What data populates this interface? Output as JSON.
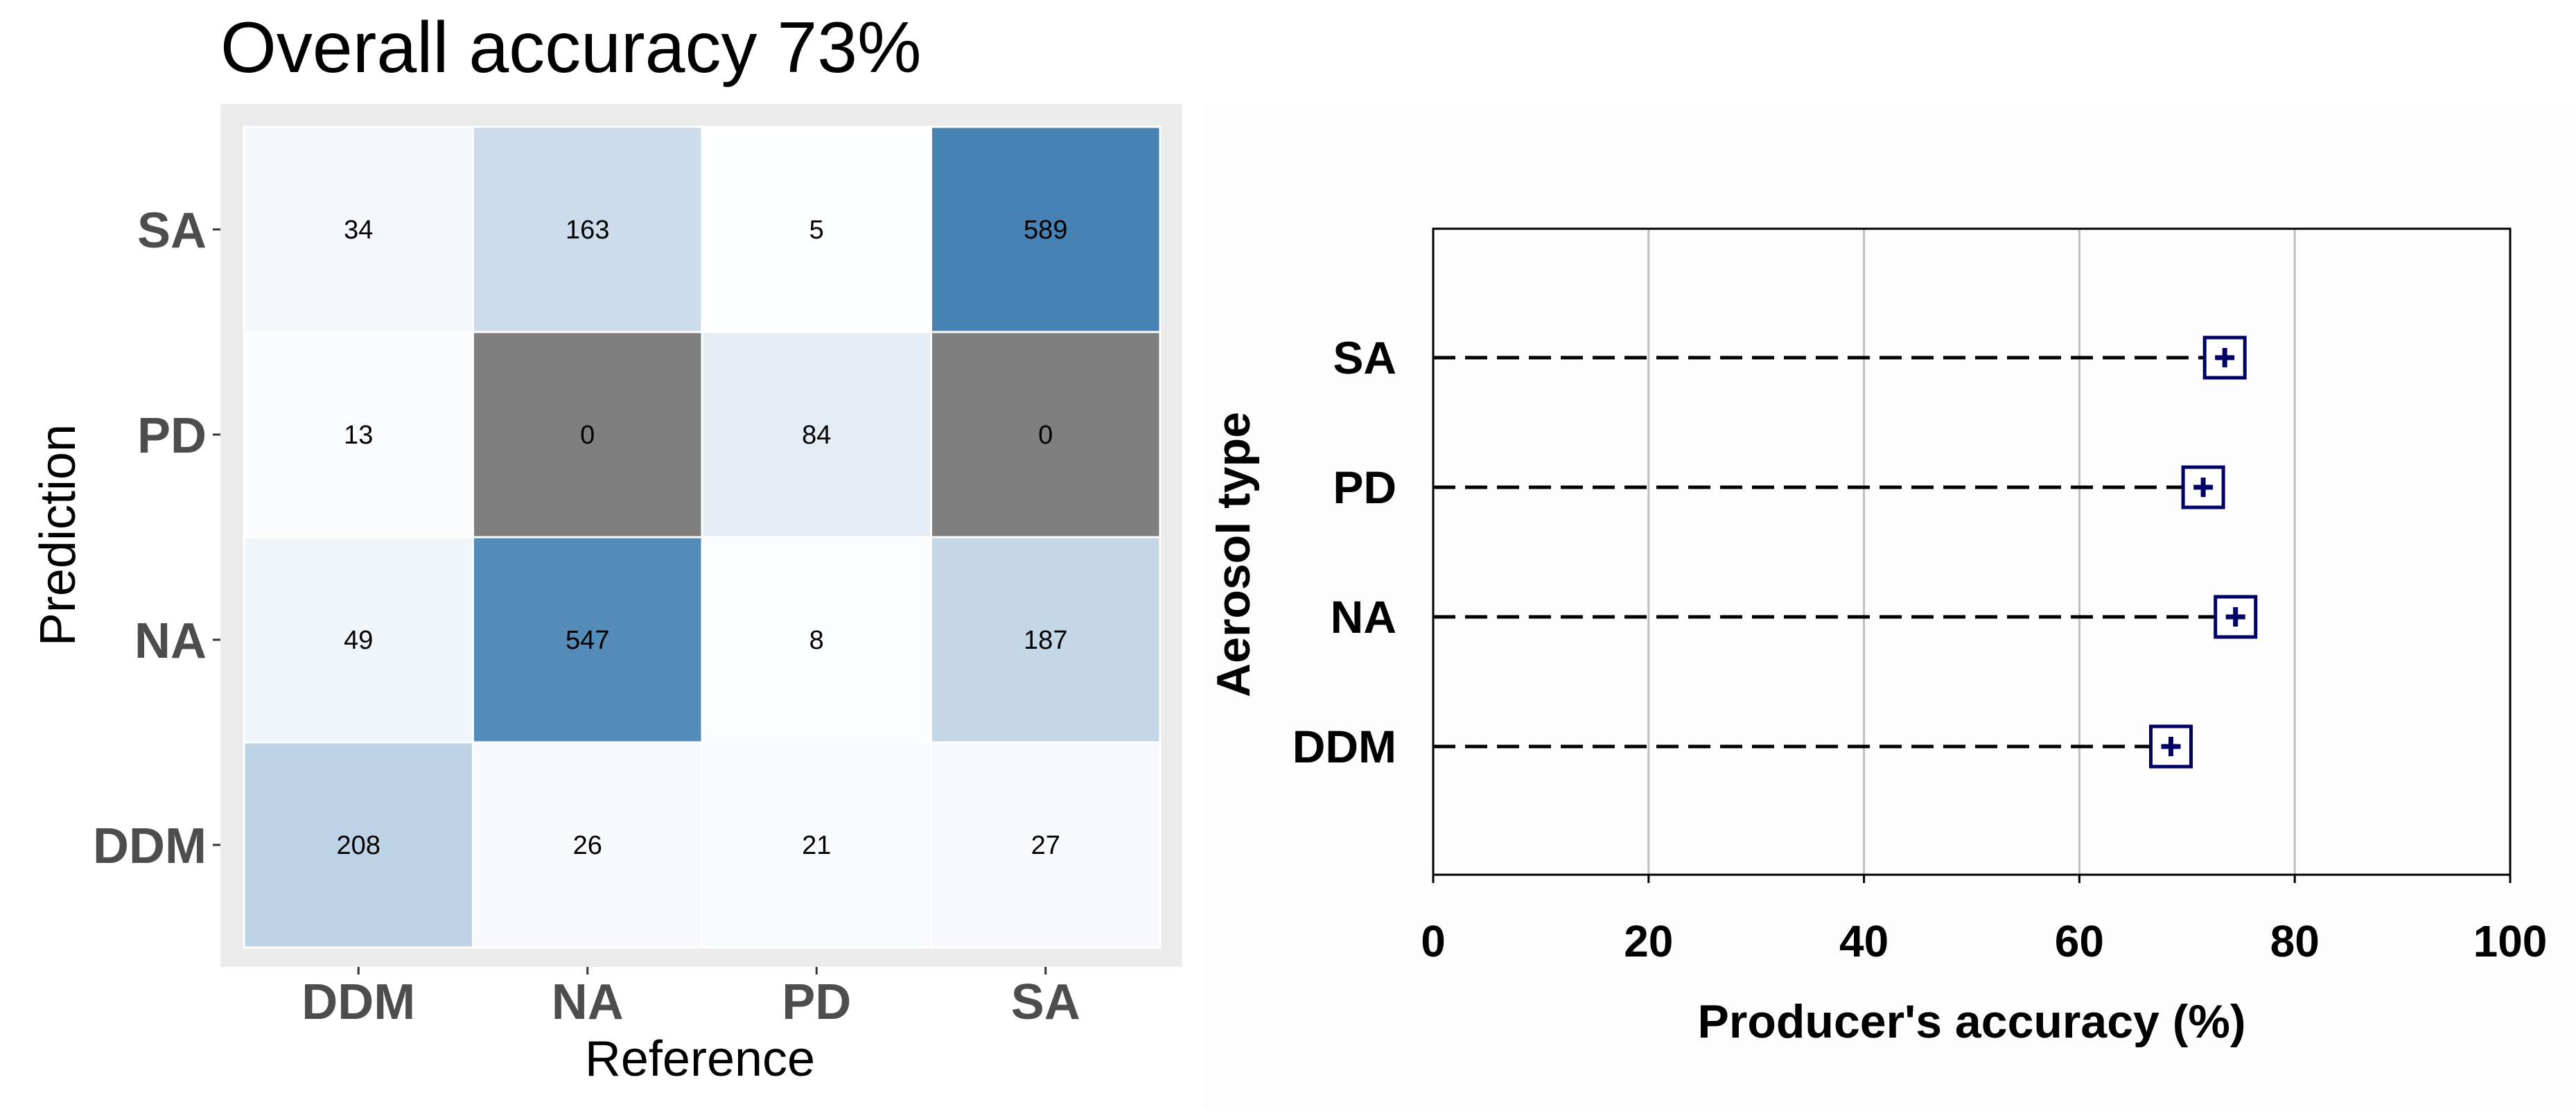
{
  "chart_data": [
    {
      "type": "heatmap",
      "title": "Overall accuracy 73%",
      "xlabel": "Reference",
      "ylabel": "Prediction",
      "x_categories": [
        "DDM",
        "NA",
        "PD",
        "SA"
      ],
      "y_categories_top_to_bottom": [
        "SA",
        "PD",
        "NA",
        "DDM"
      ],
      "matrix_rows_top_to_bottom": [
        [
          34,
          163,
          5,
          589
        ],
        [
          13,
          0,
          84,
          0
        ],
        [
          49,
          547,
          8,
          187
        ],
        [
          208,
          26,
          21,
          27
        ]
      ],
      "colors": {
        "low": "#ffffff",
        "high": "#4682b4",
        "zero": "#7f7f7f",
        "panel": "#ebebeb",
        "grid": "#ffffff",
        "text_axis": "#4d4d4d",
        "title": "#000000"
      }
    },
    {
      "type": "scatter",
      "xlabel": "Producer's accuracy (%)",
      "ylabel": "Aerosol type",
      "xlim": [
        0,
        100
      ],
      "xticks": [
        0,
        20,
        40,
        60,
        80,
        100
      ],
      "categories_top_to_bottom": [
        "SA",
        "PD",
        "NA",
        "DDM"
      ],
      "values": [
        73.5,
        71.5,
        74.5,
        68.5
      ],
      "colors": {
        "marker": "#000066",
        "dash": "#000000",
        "grid": "#c0c0c0",
        "text": "#000000"
      }
    }
  ]
}
